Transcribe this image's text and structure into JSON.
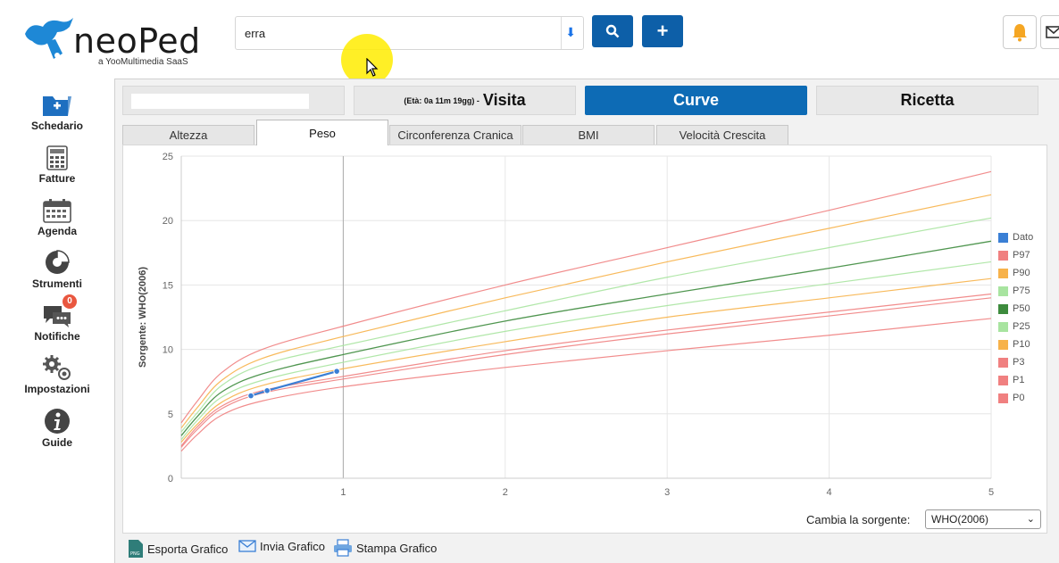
{
  "app": {
    "logo_text": "neoPed",
    "logo_sub": "a YooMultimedia SaaS"
  },
  "search": {
    "value": "erra",
    "dropdown_icon": "down-arrow-icon"
  },
  "header_buttons": {
    "search_icon": "search-icon",
    "add_label": "+",
    "bell_icon": "bell-icon",
    "mail_icon": "mail-icon"
  },
  "sidebar": {
    "items": [
      {
        "label": "Schedario",
        "icon": "folder-add-icon"
      },
      {
        "label": "Fatture",
        "icon": "calculator-icon"
      },
      {
        "label": "Agenda",
        "icon": "calendar-icon"
      },
      {
        "label": "Strumenti",
        "icon": "pie-icon"
      },
      {
        "label": "Notifiche",
        "icon": "chat-icon",
        "badge": "0"
      },
      {
        "label": "Impostazioni",
        "icon": "gears-icon"
      },
      {
        "label": "Guide",
        "icon": "info-icon"
      }
    ]
  },
  "tabs": {
    "eta": "(Età: 0a 11m 19gg) -",
    "visita": "Visita",
    "curve": "Curve",
    "ricetta": "Ricetta"
  },
  "subtabs": [
    "Altezza",
    "Peso",
    "Circonferenza Cranica",
    "BMI",
    "Velocità Crescita"
  ],
  "source": {
    "label": "Cambia la sorgente:",
    "selected": "WHO(2006)"
  },
  "footer": {
    "export": "Esporta Grafico",
    "send": "Invia Grafico",
    "print": "Stampa Grafico"
  },
  "chart_data": {
    "type": "line",
    "ylabel": "Sorgente: WHO(2006)",
    "xlabel": "",
    "xlim": [
      0,
      5
    ],
    "ylim": [
      0,
      25
    ],
    "x_ticks": [
      "1",
      "2",
      "3",
      "4",
      "5"
    ],
    "y_ticks": [
      "0",
      "5",
      "10",
      "15",
      "20",
      "25"
    ],
    "legend_position": "right",
    "x": [
      0,
      0.1,
      0.25,
      0.5,
      1,
      2,
      3,
      4,
      5
    ],
    "series": [
      {
        "name": "Dato",
        "color": "#3a7fd5",
        "x": [
          0.43,
          0.53,
          0.96
        ],
        "values": [
          6.4,
          6.8,
          8.3
        ]
      },
      {
        "name": "P97",
        "color": "#f08080",
        "values": [
          4.3,
          6.0,
          8.2,
          10.0,
          11.8,
          15.0,
          17.9,
          20.8,
          23.8
        ]
      },
      {
        "name": "P90",
        "color": "#f7b24a",
        "values": [
          3.9,
          5.5,
          7.6,
          9.3,
          11.0,
          14.0,
          16.8,
          19.4,
          22.0
        ]
      },
      {
        "name": "P75",
        "color": "#a8e4a0",
        "values": [
          3.6,
          5.1,
          7.2,
          8.8,
          10.3,
          13.0,
          15.6,
          17.9,
          20.2
        ]
      },
      {
        "name": "P50",
        "color": "#3d8b3d",
        "values": [
          3.3,
          4.8,
          6.7,
          8.1,
          9.6,
          12.2,
          14.3,
          16.3,
          18.4
        ]
      },
      {
        "name": "P25",
        "color": "#a8e4a0",
        "values": [
          3.0,
          4.5,
          6.3,
          7.6,
          9.0,
          11.4,
          13.4,
          15.1,
          16.8
        ]
      },
      {
        "name": "P10",
        "color": "#f7b24a",
        "values": [
          2.8,
          4.2,
          5.9,
          7.2,
          8.5,
          10.6,
          12.5,
          14.0,
          15.5
        ]
      },
      {
        "name": "P3",
        "color": "#f08080",
        "values": [
          2.5,
          4.0,
          5.6,
          6.8,
          7.9,
          9.9,
          11.5,
          12.9,
          14.3
        ]
      },
      {
        "name": "P1",
        "color": "#f08080",
        "values": [
          2.4,
          3.8,
          5.4,
          6.6,
          7.7,
          9.6,
          11.2,
          12.6,
          14.0
        ]
      },
      {
        "name": "P0",
        "color": "#f08080",
        "values": [
          2.1,
          3.4,
          4.9,
          6.0,
          7.1,
          8.6,
          9.9,
          11.1,
          12.4
        ]
      }
    ]
  }
}
